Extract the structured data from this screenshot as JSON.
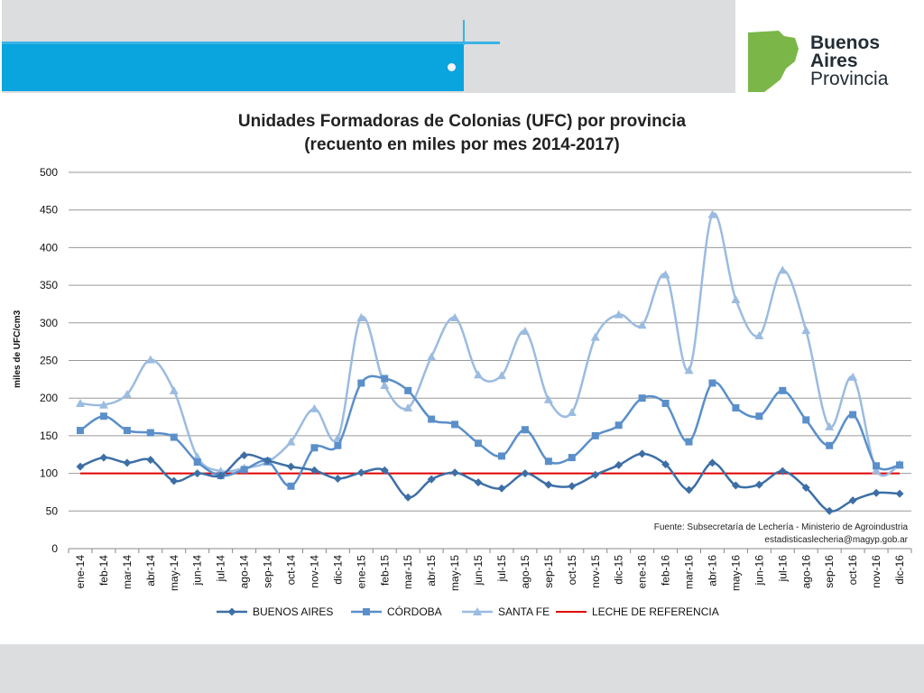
{
  "header": {
    "logo_lines": [
      "Buenos",
      "Aires",
      "Provincia"
    ],
    "colors": {
      "band_blue": "#0aa4de",
      "band_gray": "#dcdddf",
      "logo_green": "#7ab648"
    }
  },
  "chart_data": {
    "type": "line",
    "title_lines": [
      "Unidades Formadoras de Colonias (UFC) por provincia",
      "(recuento en miles por mes 2014-2017)"
    ],
    "ylabel": "miles de UFC/cm3",
    "xlabel": "",
    "ylim": [
      0,
      500
    ],
    "yticks": [
      0,
      50,
      100,
      150,
      200,
      250,
      300,
      350,
      400,
      450,
      500
    ],
    "grid": true,
    "legend_position": "bottom",
    "source_lines": [
      "Fuente: Subsecretaría de Lechería - Ministerio de Agroindustria",
      "estadisticaslecheria@magyp.gob.ar"
    ],
    "categories": [
      "ene-14",
      "feb-14",
      "mar-14",
      "abr-14",
      "may-14",
      "jun-14",
      "jul-14",
      "ago-14",
      "sep-14",
      "oct-14",
      "nov-14",
      "dic-14",
      "ene-15",
      "feb-15",
      "mar-15",
      "abr-15",
      "may-15",
      "jun-15",
      "jul-15",
      "ago-15",
      "sep-15",
      "oct-15",
      "nov-15",
      "dic-15",
      "ene-16",
      "feb-16",
      "mar-16",
      "abr-16",
      "may-16",
      "jun-16",
      "jul-16",
      "ago-16",
      "sep-16",
      "oct-16",
      "nov-16",
      "dic-16"
    ],
    "series": [
      {
        "name": "BUENOS AIRES",
        "color": "#3d6fa6",
        "marker": "diamond",
        "values": [
          109,
          121,
          114,
          118,
          90,
          100,
          97,
          124,
          117,
          109,
          104,
          93,
          101,
          104,
          68,
          92,
          101,
          88,
          80,
          100,
          85,
          83,
          98,
          111,
          126,
          112,
          78,
          114,
          84,
          85,
          103,
          81,
          50,
          64,
          74,
          73
        ]
      },
      {
        "name": "CÓRDOBA",
        "color": "#5a8fca",
        "marker": "square",
        "values": [
          157,
          176,
          157,
          154,
          148,
          115,
          97,
          105,
          116,
          83,
          134,
          137,
          220,
          226,
          210,
          172,
          165,
          140,
          123,
          158,
          116,
          121,
          150,
          164,
          200,
          193,
          142,
          220,
          187,
          176,
          210,
          171,
          137,
          178,
          110,
          111
        ]
      },
      {
        "name": "SANTA FE",
        "color": "#9bbbe0",
        "marker": "triangle",
        "values": [
          193,
          191,
          205,
          251,
          210,
          122,
          103,
          107,
          115,
          142,
          186,
          147,
          307,
          217,
          187,
          255,
          307,
          231,
          230,
          289,
          198,
          181,
          281,
          311,
          297,
          364,
          237,
          444,
          331,
          283,
          370,
          290,
          162,
          228,
          104,
          112
        ]
      },
      {
        "name": "LECHE DE REFERENCIA",
        "color": "#e00000",
        "marker": "none",
        "values": [
          100,
          100,
          100,
          100,
          100,
          100,
          100,
          100,
          100,
          100,
          100,
          100,
          100,
          100,
          100,
          100,
          100,
          100,
          100,
          100,
          100,
          100,
          100,
          100,
          100,
          100,
          100,
          100,
          100,
          100,
          100,
          100,
          100,
          100,
          100,
          100
        ]
      }
    ]
  }
}
